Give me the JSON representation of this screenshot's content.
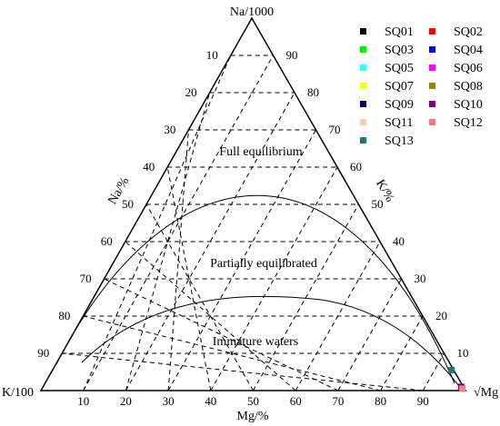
{
  "chart_data": {
    "type": "scatter",
    "subtype": "ternary (Giggenbach Na-K-Mg diagram)",
    "vertices": {
      "top": "Na/1000",
      "left": "K/100",
      "right": "√Mg"
    },
    "axis_labels": {
      "na": "Na/%",
      "k": "K/%",
      "mg": "Mg/%"
    },
    "ticks": {
      "na_left": [
        "10",
        "20",
        "30",
        "40",
        "50",
        "60",
        "70",
        "80",
        "90"
      ],
      "k_right": [
        "90",
        "80",
        "70",
        "60",
        "50",
        "40",
        "30",
        "20",
        "10"
      ],
      "mg_bottom": [
        "10",
        "20",
        "30",
        "40",
        "50",
        "60",
        "70",
        "80",
        "90"
      ]
    },
    "grid": "dashed",
    "regions": [
      "Full equilibrium",
      "Partially equilibrated",
      "Immature waters"
    ],
    "legend_position": "top-right",
    "series": [
      {
        "name": "SQ01",
        "color": "#000000",
        "mg": 99,
        "k": 0.5
      },
      {
        "name": "SQ02",
        "color": "#ff0000",
        "mg": 99,
        "k": 0.5
      },
      {
        "name": "SQ03",
        "color": "#00ee00",
        "mg": 99,
        "k": 0.5
      },
      {
        "name": "SQ04",
        "color": "#0000ee",
        "mg": 99,
        "k": 0.5
      },
      {
        "name": "SQ05",
        "color": "#33ffff",
        "mg": 99,
        "k": 0.5
      },
      {
        "name": "SQ06",
        "color": "#ff00ff",
        "mg": 99,
        "k": 0.5
      },
      {
        "name": "SQ07",
        "color": "#ffff00",
        "mg": 99,
        "k": 0.5
      },
      {
        "name": "SQ08",
        "color": "#8c8c00",
        "mg": 99,
        "k": 0.5
      },
      {
        "name": "SQ09",
        "color": "#00006b",
        "mg": 99,
        "k": 0.5
      },
      {
        "name": "SQ10",
        "color": "#800080",
        "mg": 98.5,
        "k": 0.5
      },
      {
        "name": "SQ11",
        "color": "#f5cfb0",
        "mg": 99,
        "k": 0.5
      },
      {
        "name": "SQ12",
        "color": "#f08080",
        "mg": 99,
        "k": 0.5
      },
      {
        "name": "SQ13",
        "color": "#1a7a7a",
        "mg": 94,
        "k": 0.5
      }
    ]
  }
}
